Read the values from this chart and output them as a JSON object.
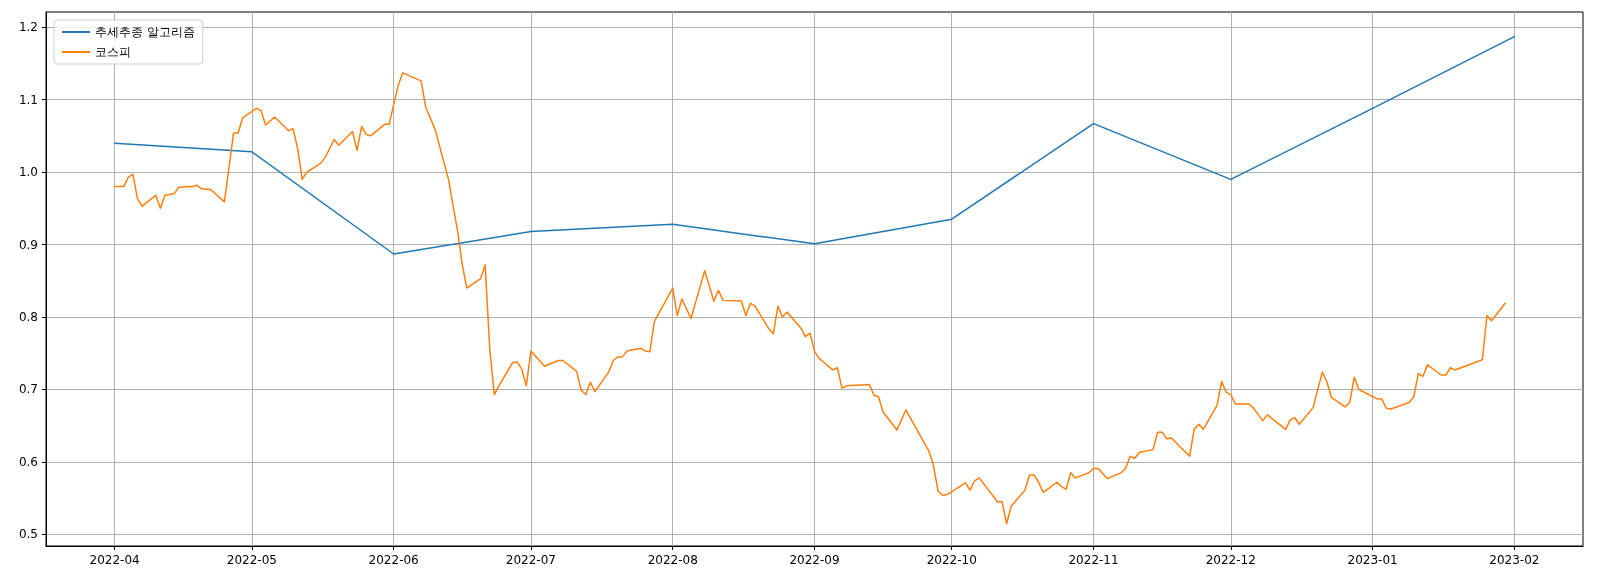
{
  "chart_data": {
    "type": "line",
    "xlim": [
      "2022-03-17",
      "2023-02-16"
    ],
    "ylim": [
      0.484,
      1.221
    ],
    "xticks": [
      {
        "value": "2022-04-01",
        "label": "2022-04"
      },
      {
        "value": "2022-05-01",
        "label": "2022-05"
      },
      {
        "value": "2022-06-01",
        "label": "2022-06"
      },
      {
        "value": "2022-07-01",
        "label": "2022-07"
      },
      {
        "value": "2022-08-01",
        "label": "2022-08"
      },
      {
        "value": "2022-09-01",
        "label": "2022-09"
      },
      {
        "value": "2022-10-01",
        "label": "2022-10"
      },
      {
        "value": "2022-11-01",
        "label": "2022-11"
      },
      {
        "value": "2022-12-01",
        "label": "2022-12"
      },
      {
        "value": "2023-01-01",
        "label": "2023-01"
      },
      {
        "value": "2023-02-01",
        "label": "2023-02"
      }
    ],
    "yticks": [
      0.5,
      0.6,
      0.7,
      0.8,
      0.9,
      {
        "value": 1.0,
        "label": "1.0"
      },
      1.1,
      1.2
    ],
    "grid": true,
    "legend": "top left",
    "line_style": "solid",
    "marker": "none",
    "series": [
      {
        "name": "추세추종 알고리즘",
        "color": "#1f77b4",
        "x": [
          "2022-04-01",
          "2022-05-01",
          "2022-06-01",
          "2022-07-01",
          "2022-08-01",
          "2022-09-01",
          "2022-10-01",
          "2022-11-01",
          "2022-12-01",
          "2023-01-01",
          "2023-02-01"
        ],
        "values": [
          1.04,
          1.028,
          0.887,
          0.918,
          0.928,
          0.901,
          0.935,
          1.067,
          0.99,
          1.088,
          1.187
        ]
      },
      {
        "name": "코스피",
        "color": "#ff7f0e",
        "x": [
          "2022-04-01",
          "2022-04-03",
          "2022-04-04",
          "2022-04-05",
          "2022-04-06",
          "2022-04-07",
          "2022-04-10",
          "2022-04-11",
          "2022-04-12",
          "2022-04-14",
          "2022-04-15",
          "2022-04-18",
          "2022-04-19",
          "2022-04-20",
          "2022-04-22",
          "2022-04-25",
          "2022-04-27",
          "2022-04-28",
          "2022-04-29",
          "2022-05-02",
          "2022-05-03",
          "2022-05-04",
          "2022-05-06",
          "2022-05-09",
          "2022-05-10",
          "2022-05-11",
          "2022-05-12",
          "2022-05-13",
          "2022-05-15",
          "2022-05-16",
          "2022-05-17",
          "2022-05-19",
          "2022-05-20",
          "2022-05-23",
          "2022-05-24",
          "2022-05-25",
          "2022-05-26",
          "2022-05-27",
          "2022-05-30",
          "2022-05-31",
          "2022-06-02",
          "2022-06-03",
          "2022-06-07",
          "2022-06-08",
          "2022-06-10",
          "2022-06-13",
          "2022-06-14",
          "2022-06-15",
          "2022-06-16",
          "2022-06-17",
          "2022-06-20",
          "2022-06-21",
          "2022-06-22",
          "2022-06-23",
          "2022-06-24",
          "2022-06-27",
          "2022-06-28",
          "2022-06-29",
          "2022-06-30",
          "2022-07-01",
          "2022-07-04",
          "2022-07-07",
          "2022-07-08",
          "2022-07-11",
          "2022-07-12",
          "2022-07-13",
          "2022-07-14",
          "2022-07-15",
          "2022-07-18",
          "2022-07-19",
          "2022-07-20",
          "2022-07-21",
          "2022-07-22",
          "2022-07-25",
          "2022-07-26",
          "2022-07-27",
          "2022-07-28",
          "2022-08-01",
          "2022-08-02",
          "2022-08-03",
          "2022-08-05",
          "2022-08-08",
          "2022-08-10",
          "2022-08-11",
          "2022-08-12",
          "2022-08-16",
          "2022-08-17",
          "2022-08-18",
          "2022-08-19",
          "2022-08-22",
          "2022-08-23",
          "2022-08-24",
          "2022-08-25",
          "2022-08-26",
          "2022-08-29",
          "2022-08-30",
          "2022-08-31",
          "2022-09-01",
          "2022-09-02",
          "2022-09-05",
          "2022-09-06",
          "2022-09-07",
          "2022-09-08",
          "2022-09-13",
          "2022-09-14",
          "2022-09-15",
          "2022-09-16",
          "2022-09-19",
          "2022-09-21",
          "2022-09-22",
          "2022-09-26",
          "2022-09-27",
          "2022-09-28",
          "2022-09-29",
          "2022-09-30",
          "2022-10-04",
          "2022-10-05",
          "2022-10-06",
          "2022-10-07",
          "2022-10-11",
          "2022-10-12",
          "2022-10-13",
          "2022-10-14",
          "2022-10-17",
          "2022-10-18",
          "2022-10-19",
          "2022-10-20",
          "2022-10-21",
          "2022-10-24",
          "2022-10-25",
          "2022-10-26",
          "2022-10-27",
          "2022-10-28",
          "2022-10-31",
          "2022-11-01",
          "2022-11-02",
          "2022-11-04",
          "2022-11-07",
          "2022-11-08",
          "2022-11-09",
          "2022-11-10",
          "2022-11-11",
          "2022-11-14",
          "2022-11-15",
          "2022-11-16",
          "2022-11-17",
          "2022-11-18",
          "2022-11-21",
          "2022-11-22",
          "2022-11-23",
          "2022-11-24",
          "2022-11-25",
          "2022-11-28",
          "2022-11-29",
          "2022-11-30",
          "2022-12-01",
          "2022-12-02",
          "2022-12-05",
          "2022-12-06",
          "2022-12-08",
          "2022-12-09",
          "2022-12-13",
          "2022-12-14",
          "2022-12-15",
          "2022-12-16",
          "2022-12-19",
          "2022-12-21",
          "2022-12-22",
          "2022-12-23",
          "2022-12-26",
          "2022-12-27",
          "2022-12-28",
          "2022-12-29",
          "2023-01-02",
          "2023-01-03",
          "2023-01-04",
          "2023-01-05",
          "2023-01-09",
          "2023-01-10",
          "2023-01-11",
          "2023-01-12",
          "2023-01-13",
          "2023-01-16",
          "2023-01-17",
          "2023-01-18",
          "2023-01-19",
          "2023-01-25",
          "2023-01-26",
          "2023-01-27",
          "2023-01-30"
        ],
        "values": [
          0.98,
          0.98,
          0.993,
          0.997,
          0.963,
          0.953,
          0.968,
          0.95,
          0.968,
          0.97,
          0.979,
          0.98,
          0.982,
          0.977,
          0.976,
          0.959,
          1.054,
          1.054,
          1.075,
          1.088,
          1.085,
          1.065,
          1.076,
          1.057,
          1.06,
          1.033,
          0.99,
          1.0,
          1.008,
          1.012,
          1.02,
          1.045,
          1.037,
          1.056,
          1.03,
          1.063,
          1.052,
          1.05,
          1.066,
          1.066,
          1.12,
          1.137,
          1.126,
          1.09,
          1.06,
          0.99,
          0.953,
          0.918,
          0.872,
          0.84,
          0.853,
          0.872,
          0.757,
          0.693,
          0.705,
          0.737,
          0.738,
          0.728,
          0.705,
          0.753,
          0.732,
          0.74,
          0.74,
          0.725,
          0.699,
          0.693,
          0.71,
          0.697,
          0.724,
          0.74,
          0.745,
          0.745,
          0.753,
          0.757,
          0.753,
          0.752,
          0.794,
          0.84,
          0.802,
          0.825,
          0.798,
          0.864,
          0.822,
          0.837,
          0.823,
          0.822,
          0.802,
          0.819,
          0.815,
          0.784,
          0.777,
          0.815,
          0.8,
          0.807,
          0.785,
          0.773,
          0.778,
          0.753,
          0.743,
          0.727,
          0.73,
          0.702,
          0.705,
          0.707,
          0.692,
          0.69,
          0.669,
          0.644,
          0.672,
          0.66,
          0.615,
          0.595,
          0.56,
          0.554,
          0.555,
          0.571,
          0.561,
          0.574,
          0.578,
          0.545,
          0.545,
          0.515,
          0.539,
          0.561,
          0.582,
          0.582,
          0.572,
          0.558,
          0.572,
          0.566,
          0.562,
          0.585,
          0.578,
          0.585,
          0.591,
          0.591,
          0.577,
          0.585,
          0.591,
          0.608,
          0.605,
          0.613,
          0.617,
          0.641,
          0.641,
          0.632,
          0.633,
          0.614,
          0.608,
          0.645,
          0.652,
          0.645,
          0.678,
          0.711,
          0.696,
          0.693,
          0.68,
          0.68,
          0.674,
          0.657,
          0.665,
          0.645,
          0.658,
          0.661,
          0.652,
          0.675,
          0.724,
          0.711,
          0.689,
          0.676,
          0.682,
          0.717,
          0.7,
          0.687,
          0.687,
          0.674,
          0.673,
          0.682,
          0.69,
          0.722,
          0.718,
          0.734,
          0.72,
          0.72,
          0.73,
          0.727,
          0.741,
          0.802,
          0.795,
          0.819
        ]
      }
    ]
  }
}
